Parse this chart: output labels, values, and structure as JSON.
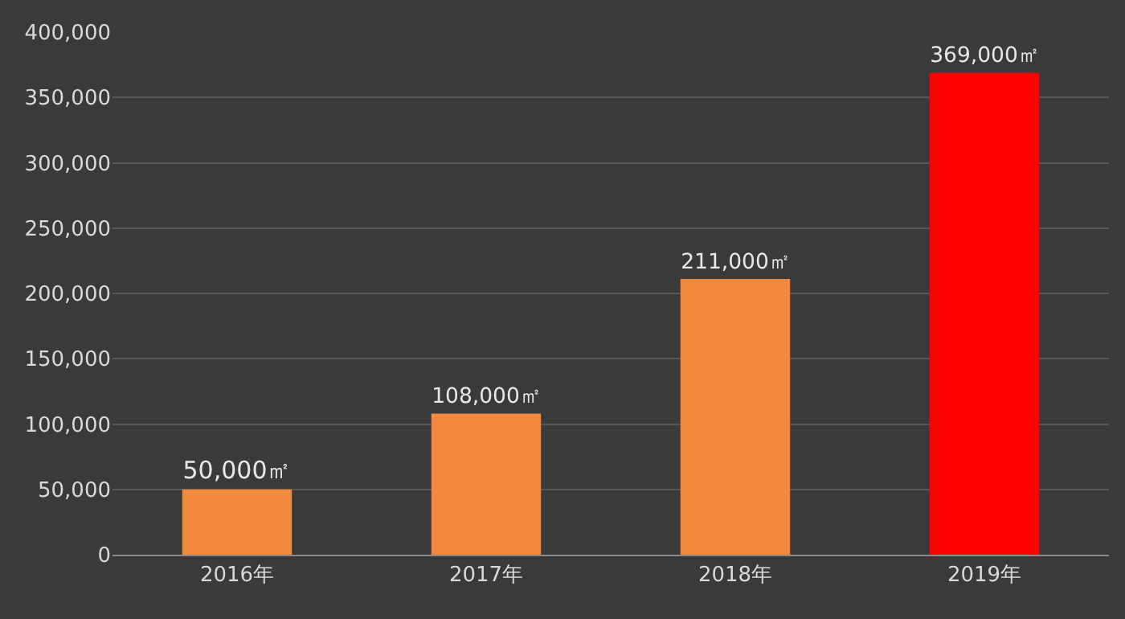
{
  "chart_data": {
    "type": "bar",
    "categories": [
      "2016年",
      "2017年",
      "2018年",
      "2019年"
    ],
    "values": [
      50000,
      108000,
      211000,
      369000
    ],
    "colors": [
      "#f28a3e",
      "#f28a3e",
      "#f28a3e",
      "#ff0000"
    ],
    "value_labels": [
      "50,000㎡",
      "108,000㎡",
      "211,000㎡",
      "369,000㎡"
    ],
    "ylim": [
      0,
      400000
    ],
    "yticks": [
      {
        "value": 0,
        "label": "0"
      },
      {
        "value": 50000,
        "label": "50,000"
      },
      {
        "value": 100000,
        "label": "100,000"
      },
      {
        "value": 150000,
        "label": "150,000"
      },
      {
        "value": 200000,
        "label": "200,000"
      },
      {
        "value": 250000,
        "label": "250,000"
      },
      {
        "value": 300000,
        "label": "300,000"
      },
      {
        "value": 350000,
        "label": "350,000"
      },
      {
        "value": 400000,
        "label": "400,000"
      }
    ],
    "grid": "y",
    "legend": false
  }
}
